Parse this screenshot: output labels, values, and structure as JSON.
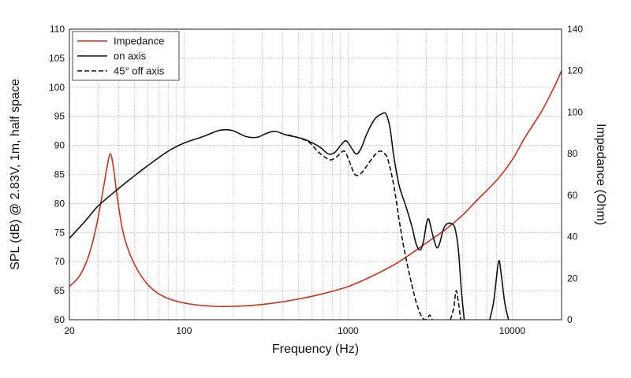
{
  "chart_data": {
    "type": "line",
    "xlabel": "Frequency (Hz)",
    "ylabel_left": "SPL (dB) @ 2.83V, 1m, half space",
    "ylabel_right": "Impedance (Ohm)",
    "x_scale": "log",
    "xlim": [
      20,
      20000
    ],
    "ylim_left": [
      60,
      110
    ],
    "ylim_right": [
      0,
      140
    ],
    "x_ticks": [
      {
        "value": 20,
        "label": "20"
      },
      {
        "value": 100,
        "label": "100"
      },
      {
        "value": 1000,
        "label": "1000"
      },
      {
        "value": 10000,
        "label": "10000"
      }
    ],
    "y_ticks_left": [
      {
        "value": 60,
        "label": "60"
      },
      {
        "value": 65,
        "label": "65"
      },
      {
        "value": 70,
        "label": "70"
      },
      {
        "value": 75,
        "label": "75"
      },
      {
        "value": 80,
        "label": "80"
      },
      {
        "value": 85,
        "label": "85"
      },
      {
        "value": 90,
        "label": "90"
      },
      {
        "value": 95,
        "label": "95"
      },
      {
        "value": 100,
        "label": "100"
      },
      {
        "value": 105,
        "label": "105"
      },
      {
        "value": 110,
        "label": "110"
      }
    ],
    "y_ticks_right": [
      {
        "value": 0,
        "label": "0"
      },
      {
        "value": 20,
        "label": "20"
      },
      {
        "value": 40,
        "label": "40"
      },
      {
        "value": 60,
        "label": "60"
      },
      {
        "value": 80,
        "label": "80"
      },
      {
        "value": 100,
        "label": "100"
      },
      {
        "value": 120,
        "label": "120"
      },
      {
        "value": 140,
        "label": "140"
      }
    ],
    "grid": true,
    "legend_position": "top-left",
    "series": [
      {
        "name": "Impedance",
        "axis": "right",
        "color": "#c8321e",
        "dash": "solid",
        "points": [
          [
            20,
            16
          ],
          [
            23,
            21
          ],
          [
            26,
            30
          ],
          [
            29,
            44
          ],
          [
            32,
            62
          ],
          [
            34,
            74
          ],
          [
            35.5,
            80
          ],
          [
            37,
            74
          ],
          [
            39,
            60
          ],
          [
            42,
            44
          ],
          [
            46,
            33
          ],
          [
            52,
            24
          ],
          [
            60,
            17
          ],
          [
            70,
            12.5
          ],
          [
            85,
            9.5
          ],
          [
            110,
            7.5
          ],
          [
            150,
            6.5
          ],
          [
            190,
            6.4
          ],
          [
            250,
            6.8
          ],
          [
            350,
            8
          ],
          [
            500,
            10
          ],
          [
            700,
            12.5
          ],
          [
            1000,
            16
          ],
          [
            1400,
            21
          ],
          [
            2000,
            27.5
          ],
          [
            3000,
            37
          ],
          [
            4000,
            44
          ],
          [
            5000,
            50.5
          ],
          [
            6000,
            57
          ],
          [
            8000,
            67
          ],
          [
            10000,
            77
          ],
          [
            12000,
            88
          ],
          [
            15000,
            100
          ],
          [
            18000,
            112
          ],
          [
            20000,
            120
          ]
        ]
      },
      {
        "name": "on axis",
        "axis": "left",
        "color": "#111111",
        "dash": "solid",
        "points": [
          [
            20,
            74
          ],
          [
            25,
            77
          ],
          [
            30,
            79.6
          ],
          [
            40,
            82.6
          ],
          [
            50,
            84.8
          ],
          [
            60,
            86.5
          ],
          [
            80,
            89
          ],
          [
            100,
            90.4
          ],
          [
            130,
            91.5
          ],
          [
            160,
            92.5
          ],
          [
            180,
            92.7
          ],
          [
            200,
            92.5
          ],
          [
            240,
            91.5
          ],
          [
            280,
            91.4
          ],
          [
            320,
            92.1
          ],
          [
            360,
            92.4
          ],
          [
            420,
            91.8
          ],
          [
            520,
            91.2
          ],
          [
            600,
            90.5
          ],
          [
            680,
            89.6
          ],
          [
            760,
            88.5
          ],
          [
            830,
            88.8
          ],
          [
            900,
            90
          ],
          [
            970,
            90.8
          ],
          [
            1040,
            89.7
          ],
          [
            1120,
            88.5
          ],
          [
            1200,
            89.5
          ],
          [
            1300,
            92
          ],
          [
            1450,
            94.5
          ],
          [
            1600,
            95.4
          ],
          [
            1700,
            95.4
          ],
          [
            1800,
            93
          ],
          [
            1900,
            88
          ],
          [
            2050,
            83
          ],
          [
            2250,
            79.5
          ],
          [
            2450,
            76
          ],
          [
            2600,
            73
          ],
          [
            2750,
            72
          ],
          [
            2880,
            73.5
          ],
          [
            3000,
            76.5
          ],
          [
            3100,
            77.3
          ],
          [
            3250,
            75
          ],
          [
            3450,
            72.5
          ],
          [
            3600,
            73
          ],
          [
            3800,
            75.5
          ],
          [
            4000,
            76.5
          ],
          [
            4300,
            76.5
          ],
          [
            4500,
            75.5
          ],
          [
            4700,
            72
          ],
          [
            4900,
            65
          ],
          [
            5100,
            60
          ]
        ]
      },
      {
        "name": "on axis",
        "axis": "left",
        "color": "#111111",
        "dash": "solid",
        "points": [
          [
            7300,
            60
          ],
          [
            7700,
            63
          ],
          [
            8000,
            67
          ],
          [
            8300,
            70.2
          ],
          [
            8600,
            67.5
          ],
          [
            9000,
            63
          ],
          [
            9500,
            60
          ]
        ]
      },
      {
        "name": "45° off axis",
        "axis": "left",
        "color": "#111111",
        "dash": "dashed",
        "points": [
          [
            430,
            91.8
          ],
          [
            500,
            91.3
          ],
          [
            580,
            90.5
          ],
          [
            650,
            89
          ],
          [
            720,
            88
          ],
          [
            780,
            87.5
          ],
          [
            850,
            88
          ],
          [
            900,
            88.7
          ],
          [
            950,
            89
          ],
          [
            1000,
            87.8
          ],
          [
            1100,
            85
          ],
          [
            1200,
            85.2
          ],
          [
            1300,
            86.5
          ],
          [
            1450,
            88.3
          ],
          [
            1550,
            89
          ],
          [
            1650,
            88.7
          ],
          [
            1750,
            87.5
          ],
          [
            1900,
            83
          ],
          [
            2050,
            77
          ],
          [
            2200,
            72
          ],
          [
            2400,
            67
          ],
          [
            2600,
            63
          ],
          [
            2800,
            60.6
          ],
          [
            2950,
            60
          ],
          [
            3050,
            60.3
          ],
          [
            3150,
            60.8
          ],
          [
            3250,
            60
          ]
        ]
      },
      {
        "name": "45° off axis",
        "axis": "left",
        "color": "#111111",
        "dash": "dashed",
        "points": [
          [
            4200,
            60
          ],
          [
            4400,
            62
          ],
          [
            4550,
            65
          ],
          [
            4700,
            63
          ],
          [
            4850,
            60
          ]
        ]
      }
    ],
    "legend": [
      {
        "label": "Impedance",
        "color": "#c8321e",
        "dash": "solid"
      },
      {
        "label": "on axis",
        "color": "#111111",
        "dash": "solid"
      },
      {
        "label": "45° off axis",
        "color": "#111111",
        "dash": "dashed"
      }
    ]
  }
}
